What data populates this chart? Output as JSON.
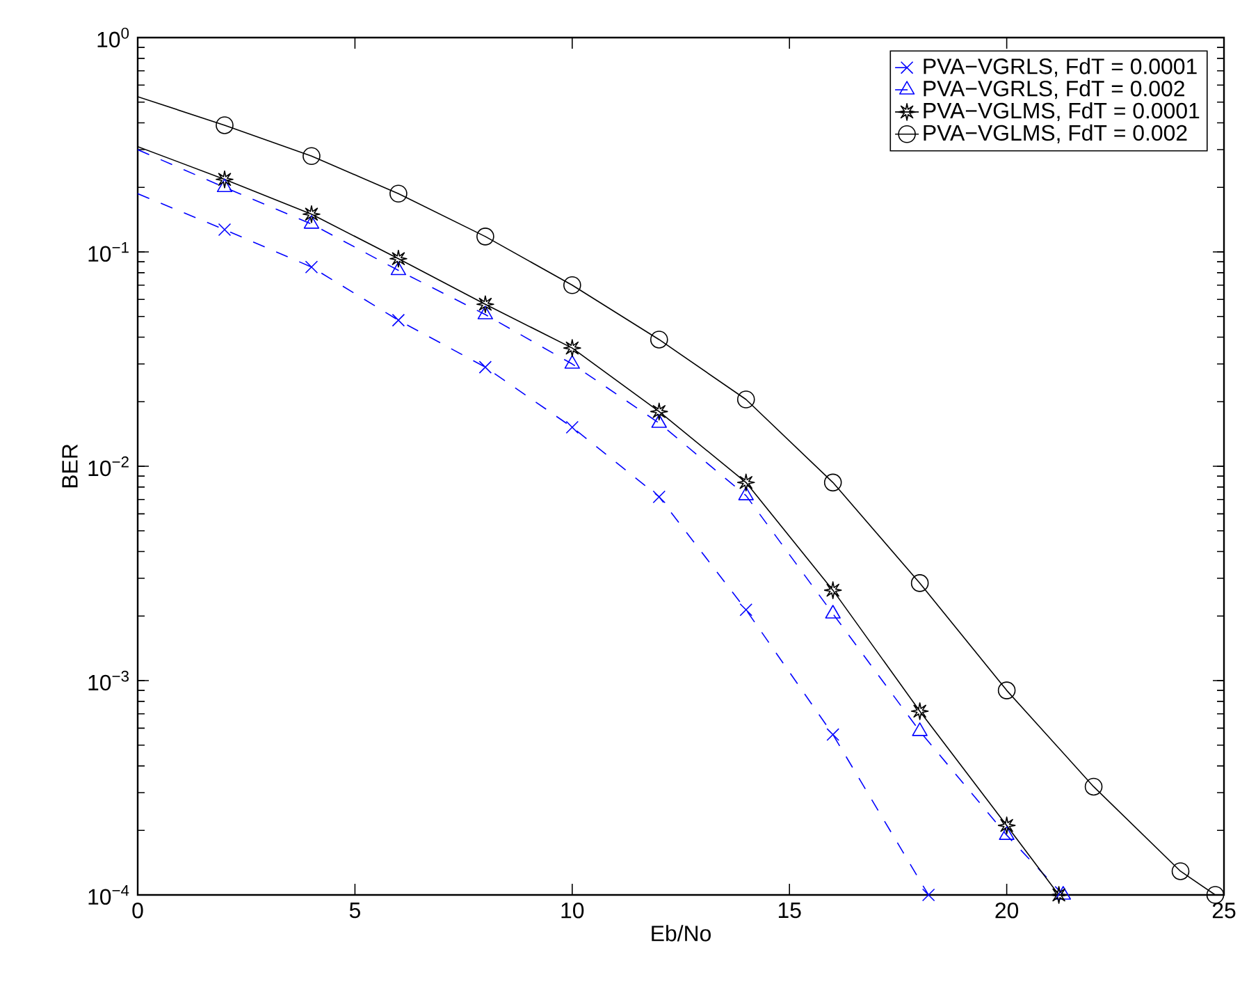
{
  "chart_data": {
    "type": "line",
    "xlabel": "Eb/No",
    "ylabel": "BER",
    "log": "y",
    "legend": "top right",
    "xlim": [
      0,
      25
    ],
    "ylim": [
      0.0001,
      1
    ],
    "xticks": [
      0,
      5,
      10,
      15,
      20,
      25
    ],
    "yticks": [
      {
        "value": 0.0001,
        "label": "10$^{−4}$"
      },
      {
        "value": 0.001,
        "label": "10$^{−3}$"
      },
      {
        "value": 0.01,
        "label": "10$^{−2}$"
      },
      {
        "value": 0.1,
        "label": "10$^{−1}$"
      },
      {
        "value": 1,
        "label": "10$^{0}$"
      }
    ],
    "series": [
      {
        "name": "PVA−VGRLS, FdT = 0.0001",
        "color": "#0000ff",
        "marker": "cross",
        "line_style": "dashed",
        "x": [
          0,
          2,
          4,
          6,
          8,
          10,
          12,
          14,
          16,
          18.2
        ],
        "values": [
          0.187,
          0.127,
          0.085,
          0.048,
          0.029,
          0.0152,
          0.0072,
          0.00214,
          0.00056,
          0.0001
        ]
      },
      {
        "name": "PVA−VGRLS, FdT = 0.002",
        "color": "#0000ff",
        "marker": "triangle",
        "line_style": "dashed",
        "x": [
          0,
          2,
          4,
          6,
          8,
          10,
          12,
          14,
          16,
          18,
          20,
          21.3
        ],
        "values": [
          0.3,
          0.2,
          0.135,
          0.082,
          0.051,
          0.03,
          0.0159,
          0.0073,
          0.00205,
          0.00058,
          0.00019,
          0.0001
        ]
      },
      {
        "name": "PVA−VGLMS, FdT = 0.0001",
        "color": "#000000",
        "marker": "star",
        "line_style": "solid",
        "x": [
          0,
          2,
          4,
          6,
          8,
          10,
          12,
          14,
          16,
          18,
          20,
          21.2
        ],
        "values": [
          0.31,
          0.218,
          0.15,
          0.093,
          0.057,
          0.0356,
          0.018,
          0.0084,
          0.00264,
          0.00072,
          0.000211,
          0.0001
        ]
      },
      {
        "name": "PVA−VGLMS, FdT = 0.002",
        "color": "#000000",
        "marker": "circle",
        "line_style": "solid",
        "x": [
          0,
          2,
          4,
          6,
          8,
          10,
          12,
          14,
          16,
          18,
          20,
          22,
          24,
          24.8
        ],
        "values": [
          0.53,
          0.39,
          0.28,
          0.187,
          0.118,
          0.07,
          0.039,
          0.0205,
          0.0084,
          0.00285,
          0.0009,
          0.00032,
          0.000129,
          0.0001
        ]
      }
    ]
  }
}
